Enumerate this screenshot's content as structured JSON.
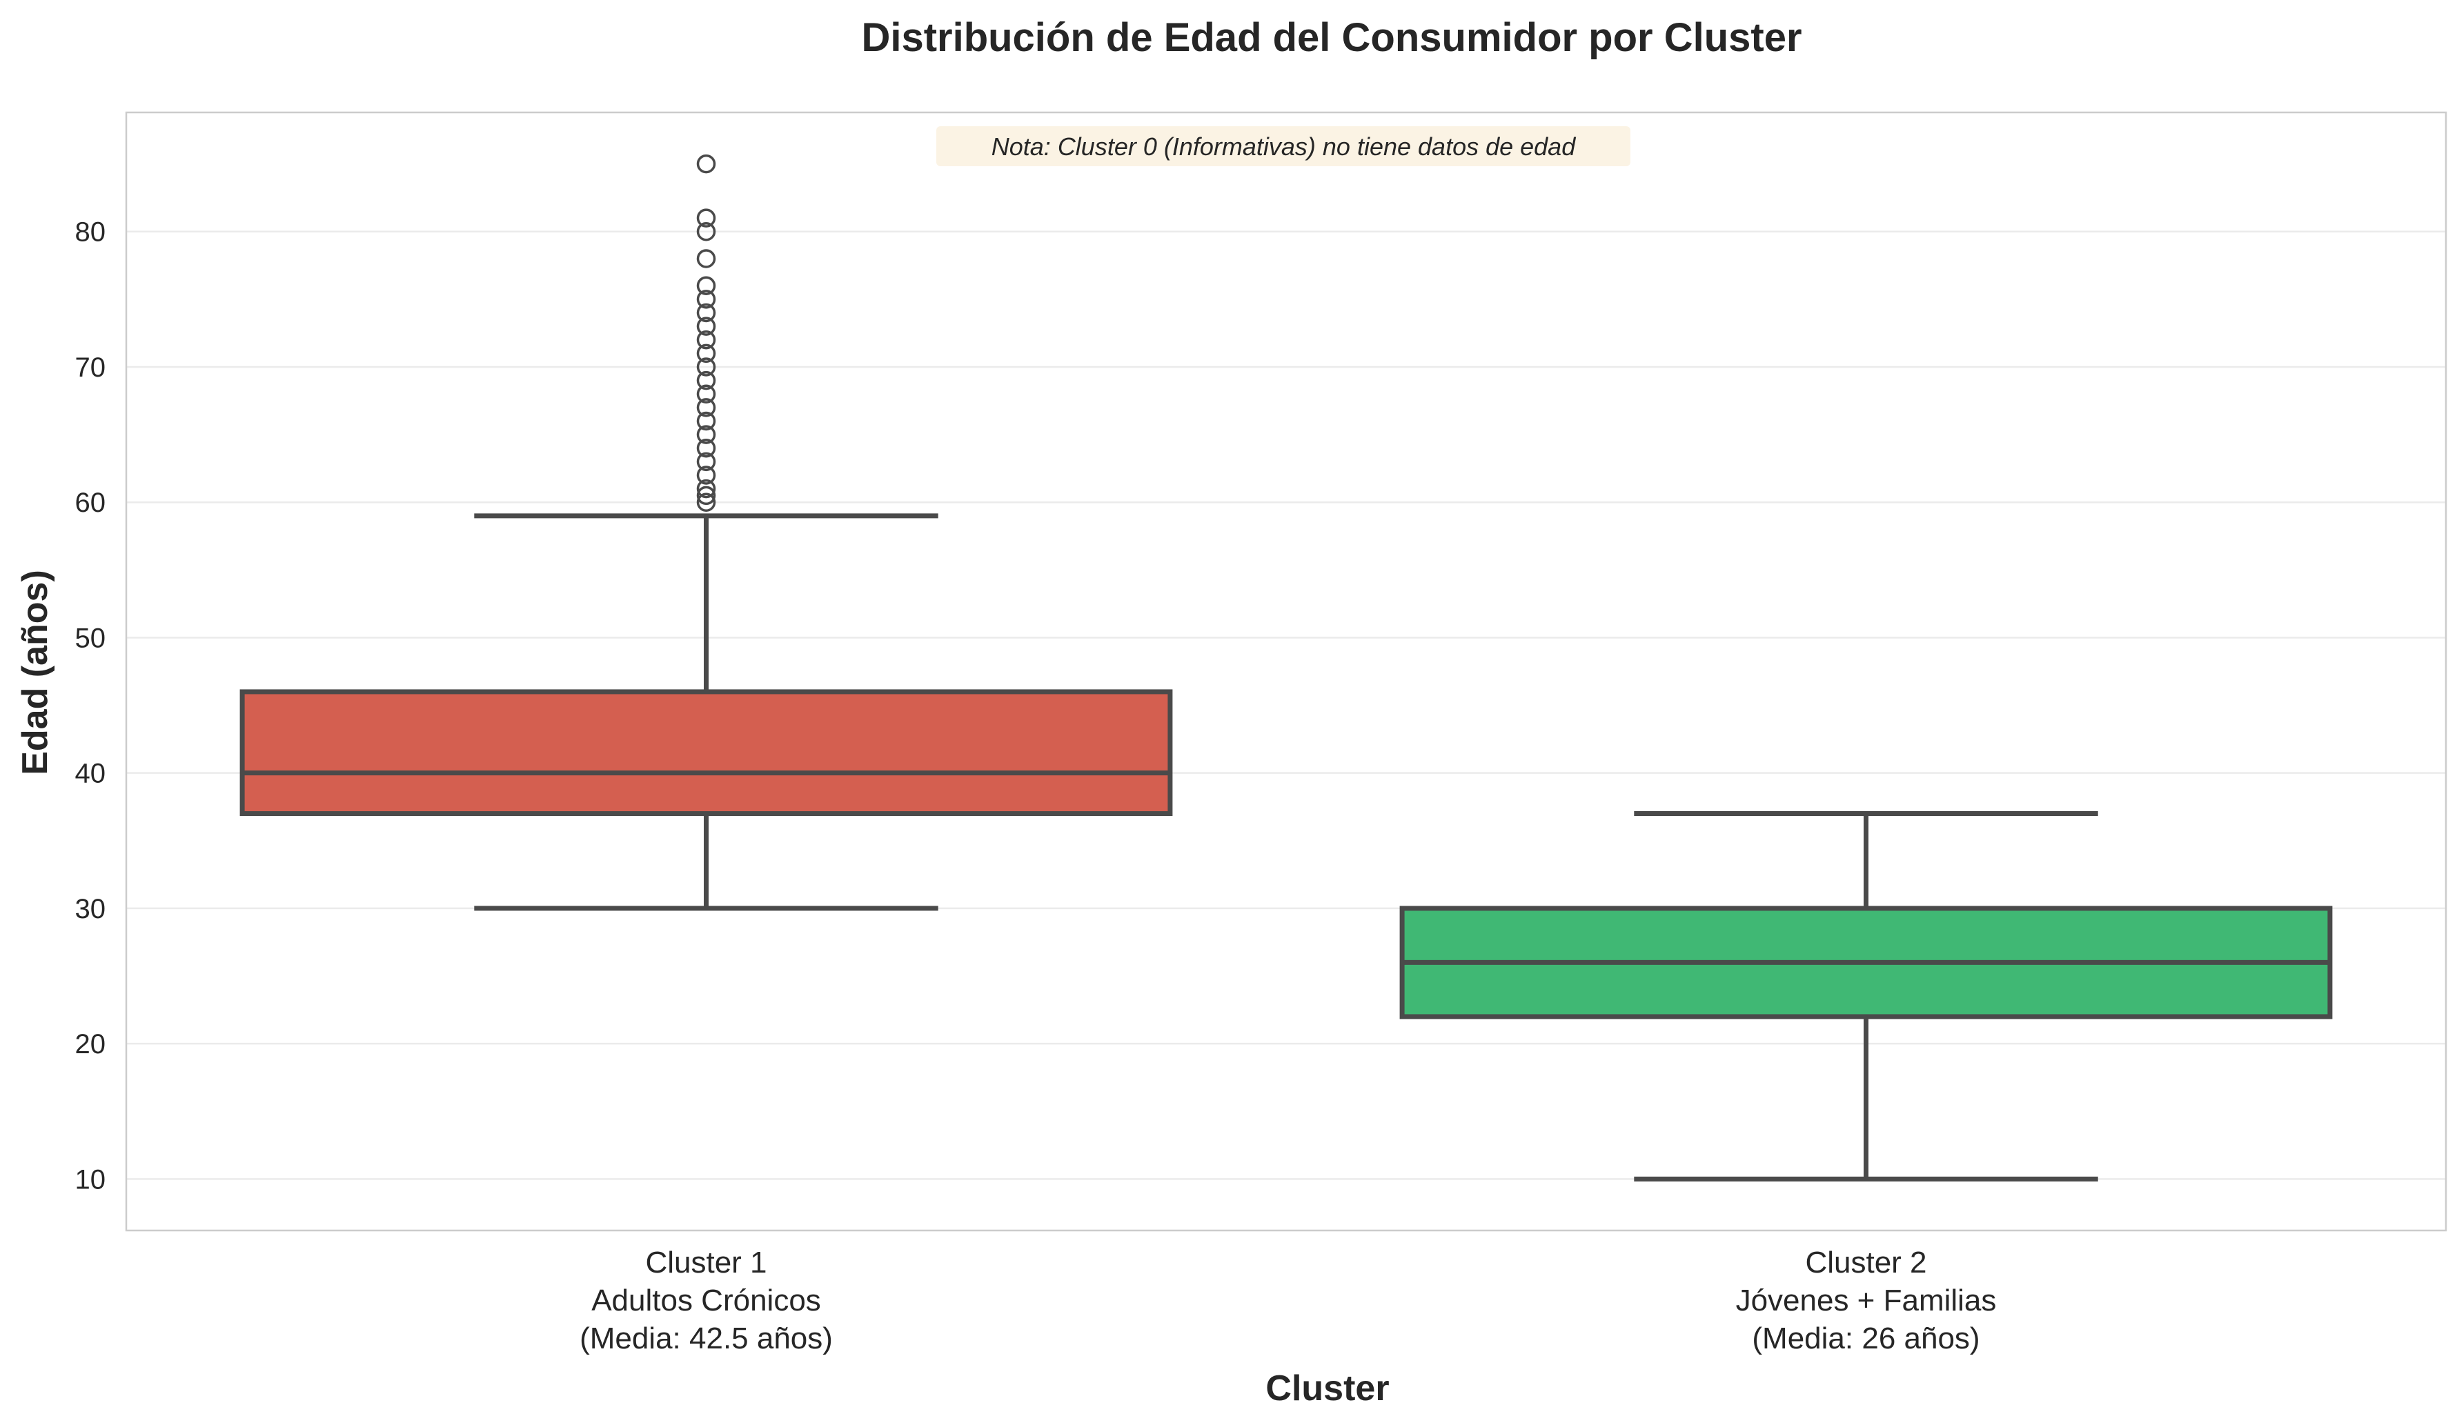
{
  "chart_data": {
    "type": "box",
    "title": "Distribución de Edad del Consumidor por Cluster",
    "xlabel": "Cluster",
    "ylabel": "Edad (años)",
    "ylim": [
      6.2,
      88.8
    ],
    "yticks": [
      10,
      20,
      30,
      40,
      50,
      60,
      70,
      80
    ],
    "grid": true,
    "note": "Nota: Cluster 0 (Informativas) no tiene datos de edad",
    "colors": {
      "background": "#ffffff",
      "grid": "#ebebeb",
      "frame": "#cccccc",
      "box_edge": "#4a4a4a",
      "text": "#262626",
      "note_bg": "#fbf3e4"
    },
    "categories": [
      {
        "label_lines": [
          "Cluster 1",
          "Adultos Crónicos",
          "(Media: 42.5 años)"
        ],
        "color": "#d45f50",
        "whisker_low": 30,
        "q1": 37,
        "median": 40,
        "q3": 46,
        "whisker_high": 59,
        "outliers": [
          60,
          60.5,
          61,
          62,
          63,
          64,
          65,
          66,
          67,
          68,
          69,
          70,
          71,
          72,
          73,
          74,
          75,
          76,
          78,
          80,
          81,
          85
        ]
      },
      {
        "label_lines": [
          "Cluster 2",
          "Jóvenes + Familias",
          "(Media: 26 años)"
        ],
        "color": "#40b874",
        "whisker_low": 10,
        "q1": 22,
        "median": 26,
        "q3": 30,
        "whisker_high": 37,
        "outliers": []
      }
    ]
  }
}
